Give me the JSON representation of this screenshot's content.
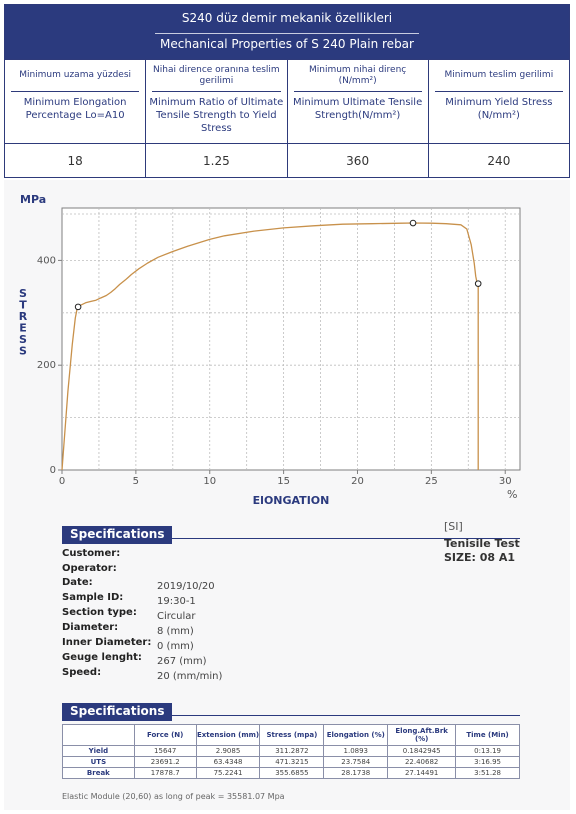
{
  "properties": {
    "title_tr": "S240 düz demir mekanik özellikleri",
    "title_en": "Mechanical Properties of S 240 Plain rebar",
    "columns": [
      {
        "tr": "Minimum uzama yüzdesi",
        "en": "Minimum Elongation Percentage Lo=A10",
        "value": "18"
      },
      {
        "tr": "Nihai dirence oranına teslim gerilimi",
        "en": "Minimum Ratio of Ultimate Tensile Strength to Yield Stress",
        "value": "1.25"
      },
      {
        "tr": "Minimum nihai direnç (N/mm²)",
        "en": "Minimum Ultimate Tensile Strength(N/mm²)",
        "value": "360"
      },
      {
        "tr": "Minimum teslim gerilimi",
        "en": "Minimum Yield Stress (N/mm²)",
        "value": "240"
      }
    ]
  },
  "chart_data": {
    "type": "line",
    "unit_label": "MPa",
    "xlabel": "ElONGATION",
    "ylabel": "STRESS",
    "x_unit": "%",
    "xlim": [
      0,
      31
    ],
    "ylim": [
      0,
      500
    ],
    "x_ticks": [
      0,
      5,
      10,
      15,
      20,
      25,
      30
    ],
    "y_ticks": [
      0,
      200,
      400
    ],
    "grid": true,
    "series": [
      {
        "color": "#c8914b",
        "x": [
          0,
          0.4,
          0.7,
          0.9,
          1.0,
          1.1,
          1.3,
          1.6,
          2.0,
          2.3,
          2.6,
          3.0,
          3.3,
          3.6,
          3.9,
          4.3,
          4.7,
          5.2,
          5.8,
          6.5,
          7.5,
          8.5,
          10,
          11,
          13,
          15,
          17,
          19,
          21,
          23,
          23.8,
          25,
          26,
          27,
          27.4,
          27.7,
          27.9,
          28.0,
          28.1,
          28.17,
          28.17
        ],
        "y": [
          0,
          150,
          240,
          290,
          305,
          311,
          315,
          319,
          322,
          324,
          328,
          333,
          339,
          346,
          354,
          363,
          373,
          384,
          395,
          406,
          417,
          427,
          440,
          447,
          456,
          462,
          466,
          469,
          470,
          471,
          471.3,
          471,
          470,
          468,
          460,
          430,
          395,
          370,
          356,
          355,
          0
        ]
      }
    ],
    "markers": [
      {
        "x": 1.09,
        "y": 311.3
      },
      {
        "x": 23.76,
        "y": 471.3
      },
      {
        "x": 28.17,
        "y": 355.7
      }
    ]
  },
  "specifications": {
    "title": "Specifications",
    "si_label": "[SI]",
    "test_title": "Tenisile Test",
    "test_size": "SIZE: 08 A1",
    "fields": [
      {
        "label": "Customer:",
        "value": ""
      },
      {
        "label": "Operator:",
        "value": ""
      },
      {
        "label": "Date:",
        "value": "2019/10/20"
      },
      {
        "label": "Sample ID:",
        "value": "19:30-1"
      },
      {
        "label": "Section type:",
        "value": "Circular"
      },
      {
        "label": "Diameter:",
        "value": "8 (mm)"
      },
      {
        "label": "Inner Diameter:",
        "value": "0 (mm)"
      },
      {
        "label": "Geuge lenght:",
        "value": "267 (mm)"
      },
      {
        "label": "Speed:",
        "value": "20 (mm/min)"
      }
    ]
  },
  "results": {
    "title": "Specifications",
    "headers": [
      "",
      "Force (N)",
      "Extension (mm)",
      "Stress (mpa)",
      "Elongation (%)",
      "Elong.Aft.Brk (%)",
      "Time (Min)"
    ],
    "rows": [
      {
        "label": "Yield",
        "cells": [
          "15647",
          "2.9085",
          "311.2872",
          "1.0893",
          "0.1842945",
          "0:13.19"
        ]
      },
      {
        "label": "UTS",
        "cells": [
          "23691.2",
          "63.4348",
          "471.3215",
          "23.7584",
          "22.40682",
          "3:16.95"
        ]
      },
      {
        "label": "Break",
        "cells": [
          "17878.7",
          "75.2241",
          "355.6855",
          "28.1738",
          "27.14491",
          "3:51.28"
        ]
      }
    ],
    "note": "Elastic Module (20,60) as long of peak = 35581.07 Mpa"
  }
}
